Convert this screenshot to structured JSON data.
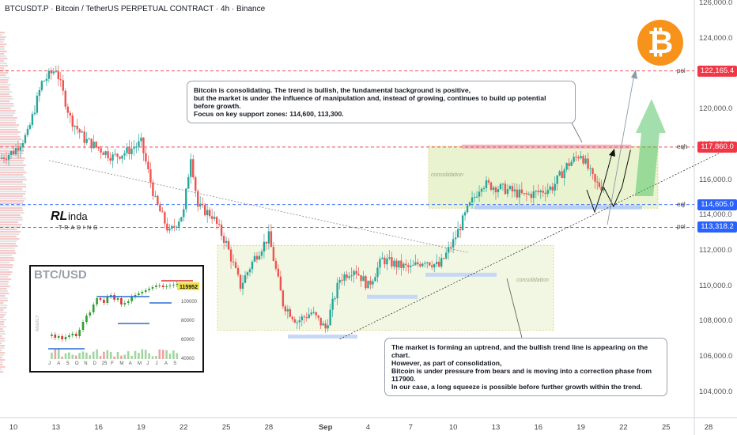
{
  "header": {
    "title": "BTCUSDT.P · Bitcoin / TetherUS PERPETUAL CONTRACT · 4h · Binance"
  },
  "notes": {
    "top": [
      "Bitcoin is consolidating. The trend is bullish, the fundamental background is positive,",
      "but the market is under the influence of manipulation and, instead of growing, continues to build up potential before growth.",
      "Focus on key support zones: 114,600, 113,300."
    ],
    "bottom": [
      "The market is forming an uptrend, and the bullish trend line is appearing on the chart.",
      "However, as part of consolidation,",
      "Bitcoin is under pressure from bears and is moving into a correction phase from 117900.",
      "In our case, a long squeeze is possible before further growth within the trend."
    ]
  },
  "levels": [
    {
      "label": "poi",
      "price": "122,165.4",
      "value": 122165.4,
      "color": "#f23645"
    },
    {
      "label": "eqh",
      "price": "117,860.0",
      "value": 117860,
      "color": "#f23645"
    },
    {
      "label": "eql",
      "price": "114,605.0",
      "value": 114605,
      "color": "#2962ff"
    },
    {
      "label": "poi",
      "price": "113,318.2",
      "value": 113318.2,
      "color": "#2962ff"
    }
  ],
  "zones": {
    "label1": "consolidation",
    "label2": "consolidation"
  },
  "logo": {
    "main": "RLinda",
    "sub": "TRADING"
  },
  "inset": {
    "title": "BTC/USD",
    "price_tag": "115952",
    "side_label": "WEEKLY",
    "ticks": [
      "100000",
      "80000",
      "60000",
      "40000"
    ],
    "months": [
      "J",
      "A",
      "S",
      "O",
      "N",
      "D",
      "25",
      "F",
      "M",
      "A",
      "M",
      "J",
      "J",
      "A",
      "S"
    ]
  },
  "icon": {
    "name": "bitcoin-icon",
    "glyph": "₿",
    "color": "#f7931a"
  },
  "colors": {
    "up": "#26a69a",
    "down": "#ef5350",
    "zone": "#e6f2c8"
  },
  "chart_data": {
    "type": "candlestick",
    "title": "BTCUSDT.P · Bitcoin / TetherUS PERPETUAL CONTRACT · 4h · Binance",
    "ylim": [
      102800,
      126000
    ],
    "y_ticks": [
      "126,000.0",
      "124,000.0",
      "122,000.0",
      "120,000.0",
      "118,000.0",
      "116,000.0",
      "114,000.0",
      "112,000.0",
      "110,000.0",
      "108,000.0",
      "106,000.0",
      "104,000.0"
    ],
    "y_tick_values": [
      126000,
      124000,
      122000,
      120000,
      118000,
      116000,
      114000,
      112000,
      110000,
      108000,
      106000,
      104000
    ],
    "x_ticks": [
      "10",
      "13",
      "16",
      "19",
      "22",
      "25",
      "28",
      "Sep",
      "4",
      "7",
      "10",
      "13",
      "16",
      "19",
      "22",
      "25",
      "28"
    ],
    "x_tick_days": [
      10,
      13,
      16,
      19,
      22,
      25,
      28,
      32,
      35,
      38,
      41,
      44,
      47,
      50,
      53,
      56,
      59
    ],
    "price_path": [
      [
        9,
        117200
      ],
      [
        10,
        117600
      ],
      [
        11,
        118600
      ],
      [
        12,
        121500
      ],
      [
        13,
        122300
      ],
      [
        14,
        119500
      ],
      [
        15,
        118300
      ],
      [
        16,
        117800
      ],
      [
        17,
        117300
      ],
      [
        18,
        117600
      ],
      [
        19,
        118100
      ],
      [
        20,
        114800
      ],
      [
        21,
        113000
      ],
      [
        22,
        114200
      ],
      [
        22.5,
        117400
      ],
      [
        23,
        114500
      ],
      [
        24,
        114000
      ],
      [
        25,
        112400
      ],
      [
        26,
        110000
      ],
      [
        27,
        111600
      ],
      [
        28,
        112800
      ],
      [
        29,
        109000
      ],
      [
        30,
        108000
      ],
      [
        31,
        108500
      ],
      [
        32,
        107600
      ],
      [
        33,
        110400
      ],
      [
        34,
        111000
      ],
      [
        35,
        110000
      ],
      [
        36,
        111500
      ],
      [
        37,
        111200
      ],
      [
        38,
        111000
      ],
      [
        39,
        111500
      ],
      [
        40,
        111100
      ],
      [
        41,
        112500
      ],
      [
        42,
        114300
      ],
      [
        43,
        115800
      ],
      [
        44,
        115600
      ],
      [
        45,
        115400
      ],
      [
        46,
        115100
      ],
      [
        47,
        115300
      ],
      [
        48,
        115600
      ],
      [
        49,
        116800
      ],
      [
        50,
        117500
      ],
      [
        51,
        115800
      ],
      [
        51.6,
        115600
      ]
    ],
    "forecast": [
      [
        51.6,
        115600
      ],
      [
        52.3,
        114500
      ],
      [
        52.9,
        115600
      ],
      [
        53.5,
        117700
      ]
    ],
    "trendline": [
      [
        33,
        107000
      ],
      [
        61,
        118000
      ]
    ],
    "down_trendline": [
      [
        12.5,
        117100
      ],
      [
        42,
        111900
      ]
    ]
  }
}
